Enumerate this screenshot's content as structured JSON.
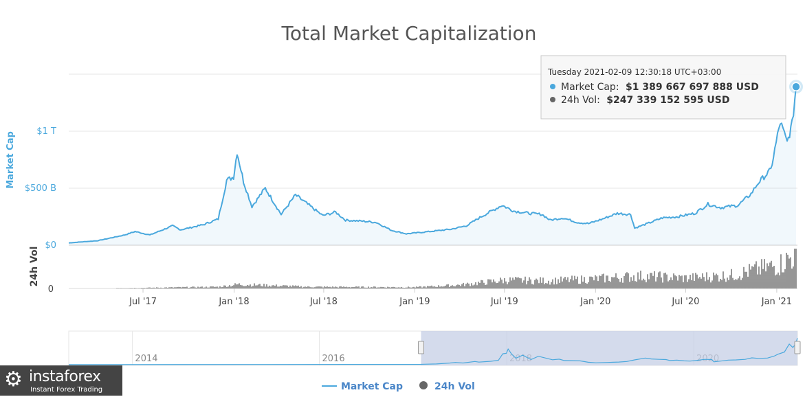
{
  "chart_data": {
    "type": "area",
    "title": "Total Market Capitalization",
    "y_axis_title": "Market Cap",
    "y_ticks": [
      "$0",
      "$500 B",
      "$1 T"
    ],
    "y_tick_values": [
      0,
      500,
      1000
    ],
    "y_unit": "billion USD",
    "ylim": [
      0,
      1500
    ],
    "volume_axis_title": "24h Vol",
    "volume_ticks": [
      "0"
    ],
    "x_ticks": [
      "Jul '17",
      "Jan '18",
      "Jul '18",
      "Jan '19",
      "Jul '19",
      "Jan '20",
      "Jul '20",
      "Jan '21"
    ],
    "x_range": [
      "2017-02-01",
      "2021-02-09"
    ],
    "series": [
      {
        "name": "Market Cap",
        "color": "#4aa8dd",
        "x": [
          "2017-02-01",
          "2017-04-01",
          "2017-05-25",
          "2017-06-15",
          "2017-07-15",
          "2017-08-30",
          "2017-09-15",
          "2017-10-31",
          "2017-11-30",
          "2017-12-17",
          "2017-12-31",
          "2018-01-07",
          "2018-01-20",
          "2018-02-06",
          "2018-03-05",
          "2018-04-06",
          "2018-05-05",
          "2018-06-29",
          "2018-07-25",
          "2018-08-14",
          "2018-09-20",
          "2018-10-15",
          "2018-11-15",
          "2018-12-15",
          "2019-01-31",
          "2019-03-15",
          "2019-04-15",
          "2019-05-15",
          "2019-06-26",
          "2019-07-20",
          "2019-08-20",
          "2019-09-15",
          "2019-10-01",
          "2019-10-27",
          "2019-11-25",
          "2019-12-18",
          "2020-01-15",
          "2020-02-14",
          "2020-03-12",
          "2020-03-20",
          "2020-04-15",
          "2020-05-15",
          "2020-06-15",
          "2020-07-20",
          "2020-08-15",
          "2020-09-10",
          "2020-10-15",
          "2020-11-10",
          "2020-11-25",
          "2020-12-20",
          "2021-01-08",
          "2021-01-22",
          "2021-02-01",
          "2021-02-09"
        ],
        "values": [
          20,
          40,
          90,
          120,
          90,
          170,
          135,
          180,
          230,
          570,
          600,
          820,
          560,
          340,
          500,
          270,
          440,
          260,
          290,
          220,
          210,
          200,
          130,
          100,
          120,
          140,
          170,
          250,
          350,
          300,
          280,
          270,
          220,
          240,
          200,
          190,
          230,
          280,
          270,
          150,
          190,
          240,
          250,
          280,
          360,
          330,
          350,
          450,
          550,
          660,
          1080,
          900,
          1060,
          1390
        ]
      },
      {
        "name": "24h Vol",
        "color": "#666666",
        "x": [
          "2017-02-01",
          "2017-06-01",
          "2017-12-01",
          "2018-01-10",
          "2018-06-01",
          "2019-01-01",
          "2019-04-01",
          "2019-07-01",
          "2019-10-01",
          "2020-01-01",
          "2020-04-01",
          "2020-07-01",
          "2020-10-01",
          "2021-01-05",
          "2021-02-09"
        ],
        "values": [
          1,
          3,
          12,
          30,
          12,
          9,
          25,
          60,
          55,
          70,
          90,
          75,
          95,
          170,
          247
        ]
      }
    ],
    "tooltip": {
      "date": "Tuesday 2021-02-09 12:30:18 UTC+03:00",
      "market_cap_label": "Market Cap:",
      "market_cap_value": "$1 389 667 697 888 USD",
      "vol_label": "24h Vol:",
      "vol_value": "$247 339 152 595 USD"
    },
    "navigator": {
      "x_ticks": [
        "2014",
        "2016",
        "2018",
        "2020"
      ],
      "selected_range": [
        "2017-02-01",
        "2021-02-09"
      ]
    },
    "legend": [
      "Market Cap",
      "24h Vol"
    ],
    "legend_position": "bottom-center",
    "grid": true
  },
  "branding": {
    "logo_name": "instaforex",
    "logo_tagline": "Instant Forex Trading",
    "logo_icon": "gear-icon"
  }
}
